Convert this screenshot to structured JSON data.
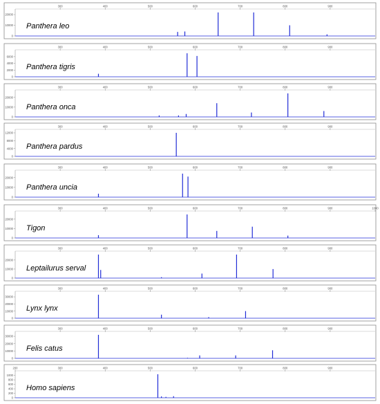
{
  "chart_data": [
    {
      "type": "line",
      "title": "Panthera leo",
      "x_ticks": [
        300,
        400,
        500,
        600,
        700,
        800,
        900
      ],
      "y_ticks": [
        0,
        10000,
        20000
      ],
      "y_tick_labels": [
        "0",
        "10000",
        "20000"
      ],
      "xlim": [
        200,
        1000
      ],
      "ylim": [
        0,
        22000
      ],
      "peaks": [
        {
          "x": 561,
          "y": 3800
        },
        {
          "x": 577,
          "y": 4200
        },
        {
          "x": 651,
          "y": 22000
        },
        {
          "x": 730,
          "y": 22000
        },
        {
          "x": 810,
          "y": 10000
        },
        {
          "x": 893,
          "y": 1500
        }
      ]
    },
    {
      "type": "line",
      "title": "Panthera tigris",
      "x_ticks": [
        300,
        400,
        500,
        600,
        700,
        800,
        900
      ],
      "y_ticks": [
        0,
        2000,
        4000,
        6000
      ],
      "y_tick_labels": [
        "0",
        "2000",
        "4000",
        "6000"
      ],
      "xlim": [
        200,
        1000
      ],
      "ylim": [
        0,
        7000
      ],
      "peaks": [
        {
          "x": 385,
          "y": 900
        },
        {
          "x": 582,
          "y": 7000
        },
        {
          "x": 604,
          "y": 6200
        }
      ]
    },
    {
      "type": "line",
      "title": "Panthera onca",
      "x_ticks": [
        300,
        400,
        500,
        600,
        700,
        800,
        900
      ],
      "y_ticks": [
        0,
        10000,
        20000
      ],
      "y_tick_labels": [
        "0",
        "10000",
        "20000"
      ],
      "xlim": [
        200,
        1000
      ],
      "ylim": [
        0,
        24000
      ],
      "peaks": [
        {
          "x": 520,
          "y": 1500
        },
        {
          "x": 563,
          "y": 1500
        },
        {
          "x": 580,
          "y": 3000
        },
        {
          "x": 648,
          "y": 14000
        },
        {
          "x": 725,
          "y": 4500
        },
        {
          "x": 806,
          "y": 24000
        },
        {
          "x": 886,
          "y": 6000
        }
      ]
    },
    {
      "type": "line",
      "title": "Panthera pardus",
      "x_ticks": [
        300,
        400,
        500,
        600,
        700,
        800,
        900
      ],
      "y_ticks": [
        0,
        4000,
        8000,
        12000
      ],
      "y_tick_labels": [
        "0",
        "4000",
        "8000",
        "12000"
      ],
      "xlim": [
        200,
        1000
      ],
      "ylim": [
        0,
        12000
      ],
      "peaks": [
        {
          "x": 558,
          "y": 12000
        }
      ]
    },
    {
      "type": "line",
      "title": "Panthera uncia",
      "x_ticks": [
        300,
        400,
        500,
        600,
        700,
        800,
        900
      ],
      "y_ticks": [
        0,
        10000,
        20000
      ],
      "y_tick_labels": [
        "0",
        "10000",
        "20000"
      ],
      "xlim": [
        200,
        1000
      ],
      "ylim": [
        0,
        24000
      ],
      "peaks": [
        {
          "x": 385,
          "y": 3500
        },
        {
          "x": 572,
          "y": 24000
        },
        {
          "x": 584,
          "y": 21000
        }
      ]
    },
    {
      "type": "line",
      "title": "Tigon",
      "x_ticks": [
        300,
        400,
        500,
        600,
        700,
        800,
        900,
        1000
      ],
      "y_ticks": [
        0,
        10000,
        20000
      ],
      "y_tick_labels": [
        "0",
        "10000",
        "20000"
      ],
      "xlim": [
        200,
        1000
      ],
      "ylim": [
        0,
        25000
      ],
      "peaks": [
        {
          "x": 385,
          "y": 3000
        },
        {
          "x": 582,
          "y": 25000
        },
        {
          "x": 648,
          "y": 7500
        },
        {
          "x": 727,
          "y": 12000
        },
        {
          "x": 806,
          "y": 2500
        }
      ]
    },
    {
      "type": "line",
      "title": "Leptailurus serval",
      "x_ticks": [
        300,
        400,
        500,
        600,
        700,
        800,
        900
      ],
      "y_ticks": [
        0,
        10000,
        20000
      ],
      "y_tick_labels": [
        "0",
        "10000",
        "20000"
      ],
      "xlim": [
        200,
        1000
      ],
      "ylim": [
        0,
        26000
      ],
      "peaks": [
        {
          "x": 385,
          "y": 26000
        },
        {
          "x": 390,
          "y": 9000
        },
        {
          "x": 525,
          "y": 1000
        },
        {
          "x": 615,
          "y": 5000
        },
        {
          "x": 692,
          "y": 26000
        },
        {
          "x": 773,
          "y": 10000
        }
      ]
    },
    {
      "type": "line",
      "title": "Lynx lynx",
      "x_ticks": [
        300,
        400,
        500,
        600,
        700,
        800,
        900
      ],
      "y_ticks": [
        0,
        10000,
        20000,
        30000
      ],
      "y_tick_labels": [
        "0",
        "10000",
        "20000",
        "30000"
      ],
      "xlim": [
        200,
        1000
      ],
      "ylim": [
        0,
        33000
      ],
      "peaks": [
        {
          "x": 385,
          "y": 33000
        },
        {
          "x": 525,
          "y": 5000
        },
        {
          "x": 630,
          "y": 1500
        },
        {
          "x": 712,
          "y": 10000
        }
      ]
    },
    {
      "type": "line",
      "title": "Felis catus",
      "x_ticks": [
        300,
        400,
        500,
        600,
        700,
        800,
        900
      ],
      "y_ticks": [
        0,
        10000,
        20000,
        30000
      ],
      "y_tick_labels": [
        "0",
        "10000",
        "20000",
        "30000"
      ],
      "xlim": [
        200,
        1000
      ],
      "ylim": [
        0,
        32000
      ],
      "peaks": [
        {
          "x": 385,
          "y": 32000
        },
        {
          "x": 583,
          "y": 700
        },
        {
          "x": 610,
          "y": 4000
        },
        {
          "x": 690,
          "y": 4000
        },
        {
          "x": 772,
          "y": 11000
        }
      ]
    },
    {
      "type": "line",
      "title": "Homo sapiens",
      "x_ticks": [
        200,
        300,
        400,
        500,
        600,
        700,
        800,
        900
      ],
      "y_ticks": [
        0,
        200,
        400,
        600,
        800,
        1000
      ],
      "y_tick_labels": [
        "0",
        "200",
        "400",
        "600",
        "800",
        "1000"
      ],
      "xlim": [
        200,
        1000
      ],
      "ylim": [
        0,
        1050
      ],
      "peaks": [
        {
          "x": 517,
          "y": 1050
        },
        {
          "x": 525,
          "y": 60
        },
        {
          "x": 535,
          "y": 40
        },
        {
          "x": 552,
          "y": 70
        }
      ]
    }
  ]
}
